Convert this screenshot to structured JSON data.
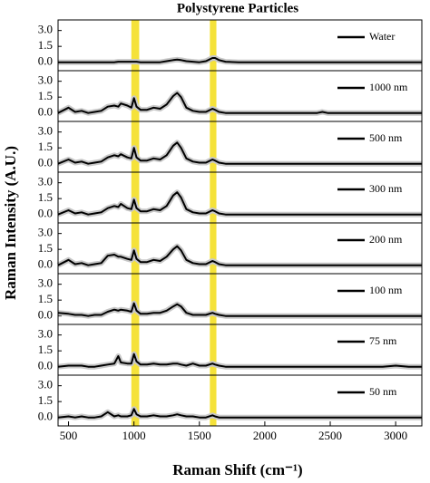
{
  "chart_data": {
    "type": "line",
    "title": "Polystyrene Particles",
    "xlabel": "Raman Shift (cm⁻¹)",
    "ylabel": "Raman Intensity (A.U.)",
    "xlim": [
      420,
      3200
    ],
    "xticks": [
      500,
      1000,
      1500,
      2000,
      2500,
      3000
    ],
    "highlights": [
      [
        980,
        1040
      ],
      [
        1580,
        1630
      ]
    ],
    "highlight_color": "#f5e23a",
    "x": [
      420,
      500,
      550,
      600,
      650,
      700,
      750,
      800,
      850,
      880,
      900,
      950,
      980,
      1000,
      1020,
      1050,
      1100,
      1150,
      1200,
      1250,
      1300,
      1330,
      1360,
      1400,
      1450,
      1500,
      1550,
      1600,
      1620,
      1650,
      1700,
      1800,
      2000,
      2200,
      2400,
      2440,
      2480,
      2600,
      2800,
      2900,
      3000,
      3100,
      3200
    ],
    "panels": [
      {
        "name": "Water",
        "color": "#000000",
        "ylim": [
          -0.8,
          4.0
        ],
        "yticks": [
          {
            "value": 0,
            "label": "0.0"
          },
          {
            "value": 1.5,
            "label": "1.5"
          },
          {
            "value": 3,
            "label": "3.0"
          }
        ],
        "values": [
          0,
          0,
          0,
          0,
          0,
          0,
          0,
          0,
          0,
          0.05,
          0.05,
          0.05,
          0.05,
          0.05,
          0.05,
          0,
          0,
          0,
          0,
          0.1,
          0.2,
          0.25,
          0.2,
          0.1,
          0.05,
          0,
          0.1,
          0.4,
          0.4,
          0.2,
          0.05,
          0,
          0,
          0,
          0,
          0,
          0,
          0,
          0,
          0,
          0,
          0,
          0
        ]
      },
      {
        "name": "1000 nm",
        "color": "#000000",
        "ylim": [
          -0.8,
          4.0
        ],
        "yticks": [
          {
            "value": 0,
            "label": "0.0"
          },
          {
            "value": 1.5,
            "label": "1.5"
          },
          {
            "value": 3,
            "label": "3.0"
          }
        ],
        "values": [
          0,
          0.5,
          0.1,
          0.2,
          0,
          0.1,
          0.2,
          0.6,
          0.7,
          0.6,
          0.9,
          0.7,
          0.5,
          1.4,
          0.6,
          0.3,
          0.3,
          0.5,
          0.4,
          0.8,
          1.6,
          1.9,
          1.5,
          0.5,
          0.2,
          0.1,
          0.1,
          0.4,
          0.3,
          0.1,
          0,
          0,
          0,
          0,
          0,
          0.1,
          0,
          0,
          0,
          0,
          0,
          0,
          0
        ]
      },
      {
        "name": "500 nm",
        "color": "#000000",
        "ylim": [
          -0.8,
          4.0
        ],
        "yticks": [
          {
            "value": 0,
            "label": "0.0"
          },
          {
            "value": 1.5,
            "label": "1.5"
          },
          {
            "value": 3,
            "label": "3.0"
          }
        ],
        "values": [
          0,
          0.4,
          0.1,
          0.2,
          0,
          0.1,
          0.2,
          0.6,
          0.8,
          0.7,
          0.9,
          0.6,
          0.5,
          1.5,
          0.6,
          0.3,
          0.3,
          0.5,
          0.4,
          0.8,
          1.7,
          2.0,
          1.5,
          0.5,
          0.2,
          0.1,
          0.1,
          0.4,
          0.3,
          0.1,
          0,
          0,
          0,
          0,
          0,
          0,
          0,
          0,
          0,
          0,
          0,
          0,
          0
        ]
      },
      {
        "name": "300 nm",
        "color": "#000000",
        "ylim": [
          -0.8,
          4.0
        ],
        "yticks": [
          {
            "value": 0,
            "label": "0.0"
          },
          {
            "value": 1.5,
            "label": "1.5"
          },
          {
            "value": 3,
            "label": "3.0"
          }
        ],
        "values": [
          0,
          0.4,
          0.1,
          0.2,
          0,
          0.1,
          0.2,
          0.6,
          0.8,
          0.7,
          1.0,
          0.6,
          0.5,
          1.4,
          0.6,
          0.3,
          0.3,
          0.5,
          0.4,
          0.8,
          1.8,
          2.1,
          1.6,
          0.5,
          0.2,
          0.1,
          0.1,
          0.4,
          0.3,
          0.1,
          0,
          0,
          0,
          0,
          0,
          0,
          0,
          0,
          0,
          0,
          0,
          0,
          0
        ]
      },
      {
        "name": "200 nm",
        "color": "#000000",
        "ylim": [
          -0.8,
          4.0
        ],
        "yticks": [
          {
            "value": 0,
            "label": "0.0"
          },
          {
            "value": 1.5,
            "label": "1.5"
          },
          {
            "value": 3,
            "label": "3.0"
          }
        ],
        "values": [
          0,
          0.5,
          0.1,
          0.2,
          0,
          0.1,
          0.2,
          0.9,
          1.0,
          0.8,
          0.8,
          0.6,
          0.5,
          1.4,
          0.6,
          0.3,
          0.3,
          0.5,
          0.4,
          0.8,
          1.5,
          1.8,
          1.4,
          0.5,
          0.2,
          0.1,
          0.1,
          0.4,
          0.3,
          0.1,
          0,
          0,
          0,
          0,
          0,
          0,
          0,
          0,
          0,
          0,
          0,
          0,
          0
        ]
      },
      {
        "name": "100 nm",
        "color": "#000000",
        "ylim": [
          -0.8,
          4.0
        ],
        "yticks": [
          {
            "value": 0,
            "label": "0.0"
          },
          {
            "value": 1.5,
            "label": "1.5"
          },
          {
            "value": 3,
            "label": "3.0"
          }
        ],
        "values": [
          0.3,
          0.2,
          0.1,
          0.1,
          0,
          0.1,
          0.1,
          0.4,
          0.6,
          0.5,
          0.6,
          0.5,
          0.4,
          1.2,
          0.5,
          0.2,
          0.2,
          0.3,
          0.3,
          0.5,
          0.9,
          1.1,
          0.9,
          0.3,
          0.1,
          0.1,
          0.1,
          0.3,
          0.2,
          0.1,
          0,
          0,
          0,
          0,
          0,
          0,
          0,
          0,
          0,
          0,
          0,
          0,
          0
        ]
      },
      {
        "name": "75 nm",
        "color": "#000000",
        "ylim": [
          -0.8,
          4.0
        ],
        "yticks": [
          {
            "value": 0,
            "label": "0.0"
          },
          {
            "value": 1.5,
            "label": "1.5"
          },
          {
            "value": 3,
            "label": "3.0"
          }
        ],
        "values": [
          0,
          0.1,
          0.1,
          0.1,
          0,
          0,
          0.1,
          0.2,
          0.3,
          1.0,
          0.4,
          0.3,
          0.3,
          1.2,
          0.5,
          0.2,
          0.2,
          0.3,
          0.2,
          0.2,
          0.3,
          0.3,
          0.2,
          0.1,
          0.3,
          0.1,
          0.1,
          0.3,
          0.2,
          0.1,
          0,
          0,
          0,
          0,
          0,
          0,
          0,
          0,
          0,
          0,
          0.1,
          0,
          0
        ]
      },
      {
        "name": "50 nm",
        "color": "#000000",
        "ylim": [
          -0.8,
          4.0
        ],
        "yticks": [
          {
            "value": 0,
            "label": "0.0"
          },
          {
            "value": 1.5,
            "label": "1.5"
          },
          {
            "value": 3,
            "label": "3.0"
          }
        ],
        "values": [
          0,
          0.1,
          0,
          0.1,
          0,
          0,
          0.1,
          0.5,
          0.1,
          0.2,
          0.1,
          0.1,
          0.2,
          0.8,
          0.3,
          0.1,
          0.1,
          0.2,
          0.1,
          0.1,
          0.2,
          0.3,
          0.2,
          0.1,
          0.1,
          0,
          0,
          0.2,
          0.1,
          0,
          0,
          0,
          0,
          0,
          0,
          0,
          0,
          0,
          0,
          0,
          0,
          0,
          0
        ]
      }
    ]
  }
}
